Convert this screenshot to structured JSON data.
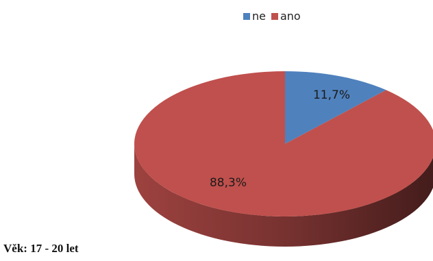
{
  "caption": "Věk: 17 - 20 let",
  "chart_data": {
    "type": "pie",
    "style": "3d",
    "labels": [
      "ne",
      "ano"
    ],
    "values": [
      11.7,
      88.3
    ],
    "data_labels": [
      "11,7%",
      "88,3%"
    ],
    "colors": [
      "#4f81bd",
      "#c0504d"
    ],
    "legend": {
      "position": "top",
      "entries": [
        "ne",
        "ano"
      ]
    }
  }
}
